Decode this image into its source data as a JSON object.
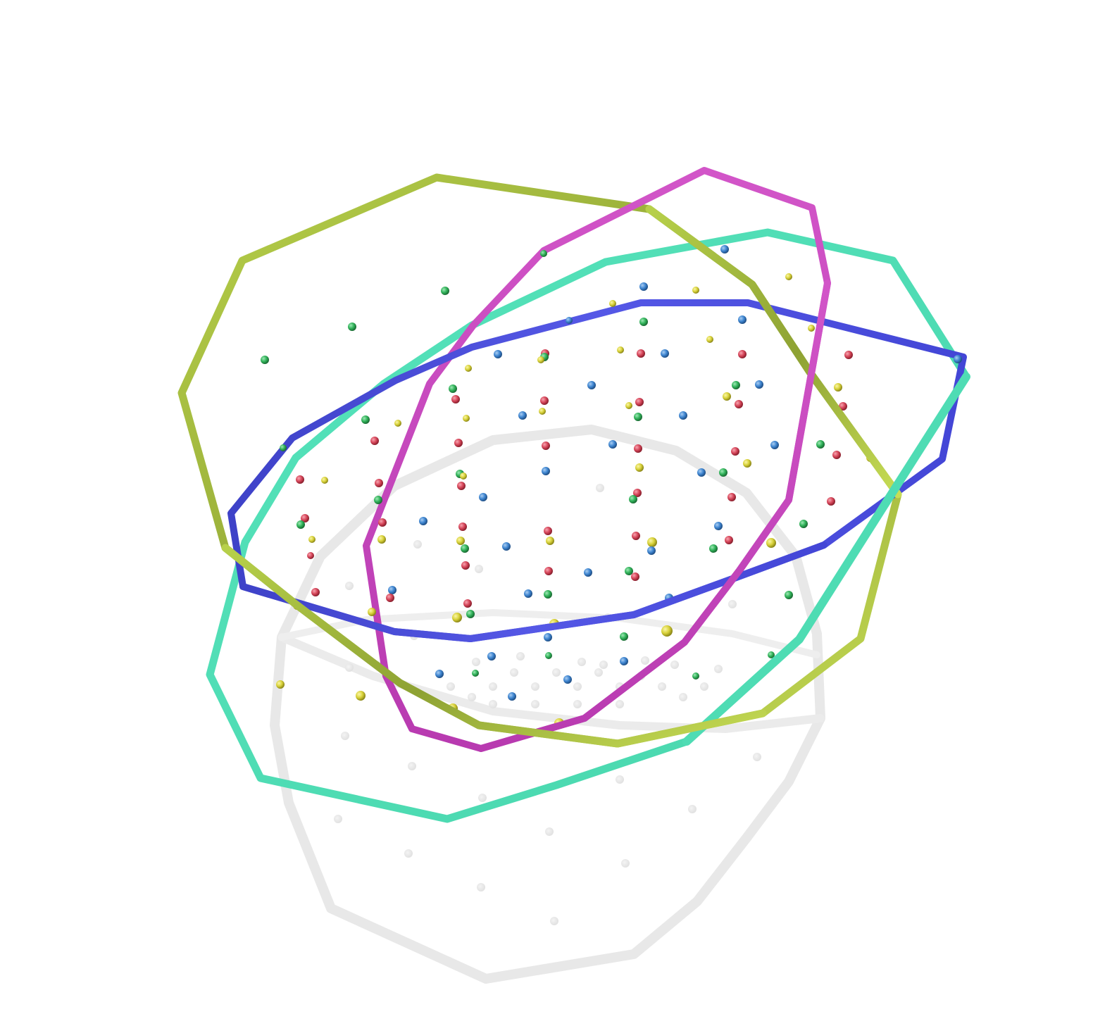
{
  "scene": {
    "background": "#ffffff",
    "palette": {
      "olive_ring": "#9db83a",
      "magenta_ring": "#c040b8",
      "aqua_ring": "#4fe0b5",
      "blue_ring": "#4c4fe0",
      "ghost": "#e6e6e6",
      "dot_red": "#d6465a",
      "dot_blue": "#3f86d1",
      "dot_green": "#31b35a",
      "dot_yellow": "#d8d23a"
    },
    "rings": [
      {
        "id": "olive",
        "color": "#9db83a",
        "shape": "dodecagon"
      },
      {
        "id": "magenta",
        "color": "#c040b8",
        "shape": "dodecagon"
      },
      {
        "id": "aqua",
        "color": "#4fe0b5",
        "shape": "dodecagon"
      },
      {
        "id": "blue",
        "color": "#4c4fe0",
        "shape": "dodecagon"
      }
    ],
    "ghost_shapes": [
      "ghost-basket-rim",
      "ghost-basket-base",
      "ghost-dot-lattice"
    ],
    "dot_colors": [
      "red",
      "blue",
      "green",
      "yellow"
    ]
  }
}
